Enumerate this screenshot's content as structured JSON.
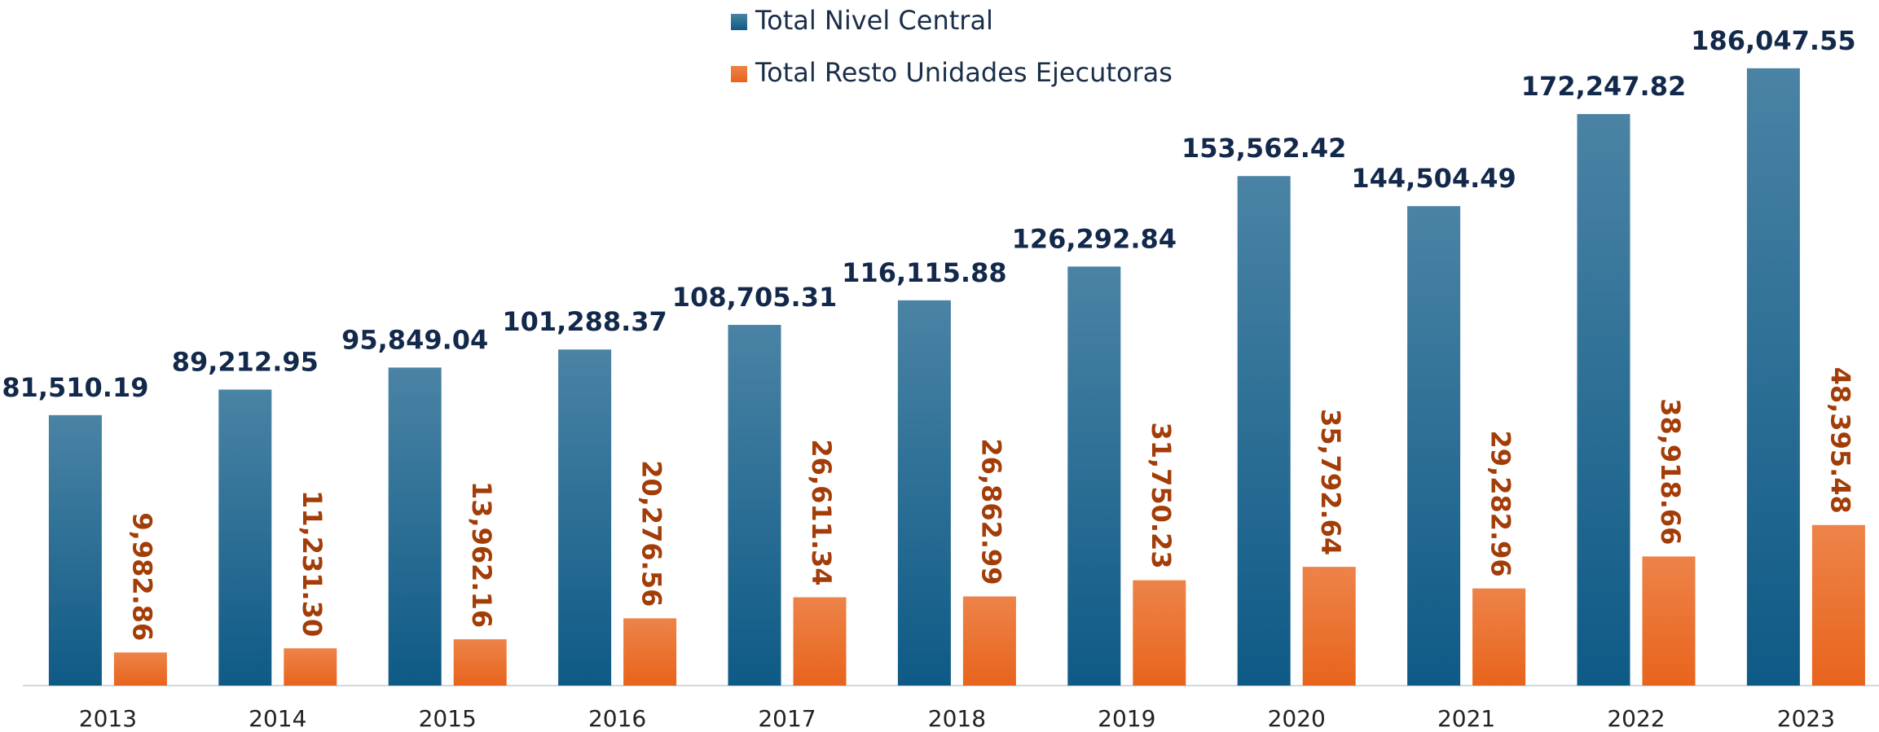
{
  "chart_data": {
    "type": "bar",
    "categories": [
      "2013",
      "2014",
      "2015",
      "2016",
      "2017",
      "2018",
      "2019",
      "2020",
      "2021",
      "2022",
      "2023"
    ],
    "series": [
      {
        "name": "Total Nivel Central",
        "color": "#0e5a86",
        "values": [
          81510.19,
          89212.95,
          95849.04,
          101288.37,
          108705.31,
          116115.88,
          126292.84,
          153562.42,
          144504.49,
          172247.82,
          186047.55
        ],
        "value_labels": [
          "81,510.19",
          "89,212.95",
          "95,849.04",
          "101,288.37",
          "108,705.31",
          "116,115.88",
          "126,292.84",
          "153,562.42",
          "144,504.49",
          "172,247.82",
          "186,047.55"
        ]
      },
      {
        "name": "Total Resto Unidades Ejecutoras",
        "color": "#e8641c",
        "values": [
          9982.86,
          11231.3,
          13962.16,
          20276.56,
          26611.34,
          26862.99,
          31750.23,
          35792.64,
          29282.96,
          38918.66,
          48395.48
        ],
        "value_labels": [
          "9,982.86",
          "11,231.30",
          "13,962.16",
          "20,276.56",
          "26,611.34",
          "26,862.99",
          "31,750.23",
          "35,792.64",
          "29,282.96",
          "38,918.66",
          "48,395.48"
        ]
      }
    ],
    "ylim": [
      0,
      200000
    ],
    "legend": "top"
  }
}
